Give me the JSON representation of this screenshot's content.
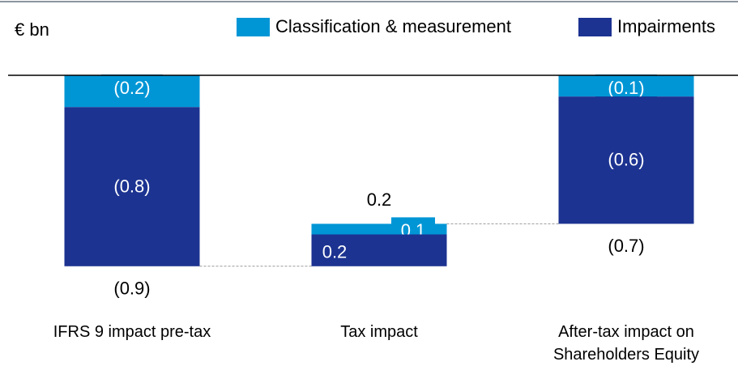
{
  "chart_data": {
    "type": "waterfall",
    "unit_label": "€ bn",
    "categories": [
      "IFRS 9 impact pre-tax",
      "Tax impact",
      "After-tax impact on Shareholders Equity"
    ],
    "series": [
      {
        "name": "Classification & measurement",
        "color": "#0096d6",
        "values": [
          -0.15,
          0.05,
          -0.1
        ],
        "value_labels": [
          "(0.2)",
          "0.1",
          "(0.1)"
        ]
      },
      {
        "name": "Impairments",
        "color": "#1c3391",
        "values": [
          -0.75,
          0.15,
          -0.6
        ],
        "value_labels": [
          "(0.8)",
          "0.2",
          "(0.6)"
        ]
      }
    ],
    "totals": [
      -0.9,
      0.2,
      -0.7
    ],
    "total_labels": [
      "(0.9)",
      "0.2",
      "(0.7)"
    ],
    "ylim": [
      -1.1,
      0
    ]
  }
}
